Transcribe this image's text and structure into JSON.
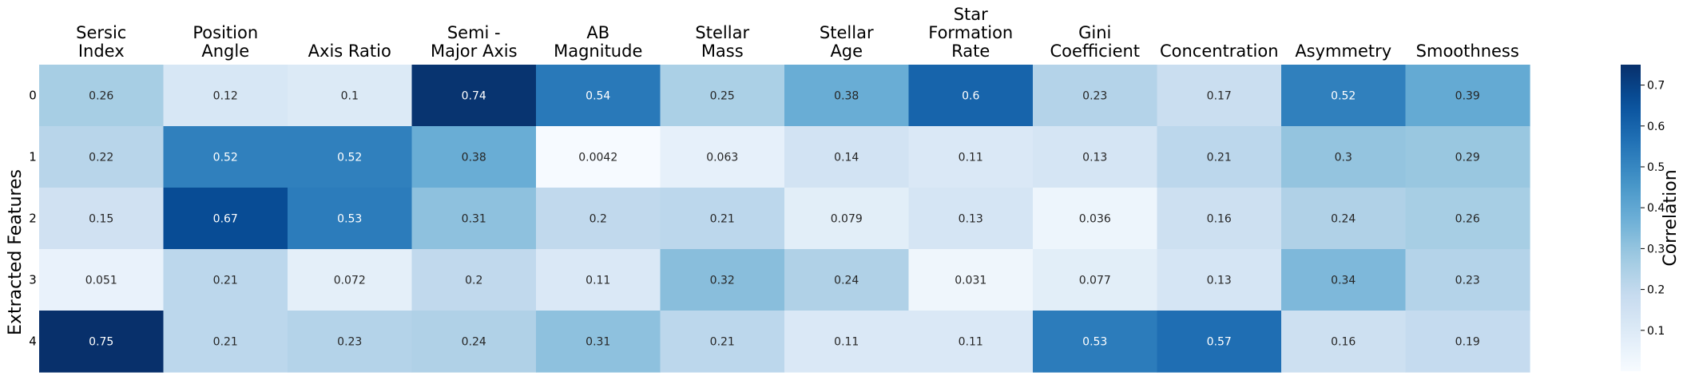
{
  "chart_data": {
    "type": "heatmap",
    "title": "",
    "xlabel": "",
    "ylabel": "Extracted Features",
    "colorbar_label": "Correlation",
    "colormap": "Blues",
    "colorbar_range": [
      0,
      0.75
    ],
    "colorbar_ticks": [
      "0.1",
      "0.2",
      "0.3",
      "0.4",
      "0.5",
      "0.6",
      "0.7"
    ],
    "x_tick_position": "top",
    "columns": [
      [
        "Sersic",
        "Index"
      ],
      [
        "Position",
        "Angle"
      ],
      [
        "Axis Ratio"
      ],
      [
        "Semi -",
        "Major Axis"
      ],
      [
        "AB",
        "Magnitude"
      ],
      [
        "Stellar",
        "Mass"
      ],
      [
        "Stellar",
        "Age"
      ],
      [
        "Star",
        "Formation",
        "Rate"
      ],
      [
        "Gini",
        "Coefficient"
      ],
      [
        "Concentration"
      ],
      [
        "Asymmetry"
      ],
      [
        "Smoothness"
      ]
    ],
    "rows": [
      "0",
      "1",
      "2",
      "3",
      "4"
    ],
    "values": [
      [
        0.26,
        0.12,
        0.1,
        0.74,
        0.54,
        0.25,
        0.38,
        0.6,
        0.23,
        0.17,
        0.52,
        0.39
      ],
      [
        0.22,
        0.52,
        0.52,
        0.38,
        0.0042,
        0.063,
        0.14,
        0.11,
        0.13,
        0.21,
        0.3,
        0.29
      ],
      [
        0.15,
        0.67,
        0.53,
        0.31,
        0.2,
        0.21,
        0.079,
        0.13,
        0.036,
        0.16,
        0.24,
        0.26
      ],
      [
        0.051,
        0.21,
        0.072,
        0.2,
        0.11,
        0.32,
        0.24,
        0.031,
        0.077,
        0.13,
        0.34,
        0.23
      ],
      [
        0.75,
        0.21,
        0.23,
        0.24,
        0.31,
        0.21,
        0.11,
        0.11,
        0.53,
        0.57,
        0.16,
        0.19
      ]
    ],
    "labels": [
      [
        "0.26",
        "0.12",
        "0.1",
        "0.74",
        "0.54",
        "0.25",
        "0.38",
        "0.6",
        "0.23",
        "0.17",
        "0.52",
        "0.39"
      ],
      [
        "0.22",
        "0.52",
        "0.52",
        "0.38",
        "0.0042",
        "0.063",
        "0.14",
        "0.11",
        "0.13",
        "0.21",
        "0.3",
        "0.29"
      ],
      [
        "0.15",
        "0.67",
        "0.53",
        "0.31",
        "0.2",
        "0.21",
        "0.079",
        "0.13",
        "0.036",
        "0.16",
        "0.24",
        "0.26"
      ],
      [
        "0.051",
        "0.21",
        "0.072",
        "0.2",
        "0.11",
        "0.32",
        "0.24",
        "0.031",
        "0.077",
        "0.13",
        "0.34",
        "0.23"
      ],
      [
        "0.75",
        "0.21",
        "0.23",
        "0.24",
        "0.31",
        "0.21",
        "0.11",
        "0.11",
        "0.53",
        "0.57",
        "0.16",
        "0.19"
      ]
    ]
  }
}
